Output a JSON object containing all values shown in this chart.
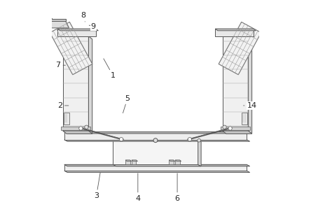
{
  "bg_color": "#ffffff",
  "line_color": "#555555",
  "label_fontsize": 8,
  "labels_pos": {
    "1": [
      0.295,
      0.635,
      0.245,
      0.725
    ],
    "2": [
      0.038,
      0.49,
      0.09,
      0.49
    ],
    "3": [
      0.215,
      0.055,
      0.235,
      0.175
    ],
    "4": [
      0.415,
      0.042,
      0.415,
      0.172
    ],
    "5": [
      0.365,
      0.525,
      0.34,
      0.445
    ],
    "6": [
      0.605,
      0.042,
      0.605,
      0.172
    ],
    "7": [
      0.03,
      0.685,
      0.075,
      0.685
    ],
    "8": [
      0.15,
      0.925,
      0.16,
      0.895
    ],
    "9": [
      0.2,
      0.87,
      0.18,
      0.878
    ],
    "14": [
      0.965,
      0.49,
      0.915,
      0.49
    ]
  }
}
